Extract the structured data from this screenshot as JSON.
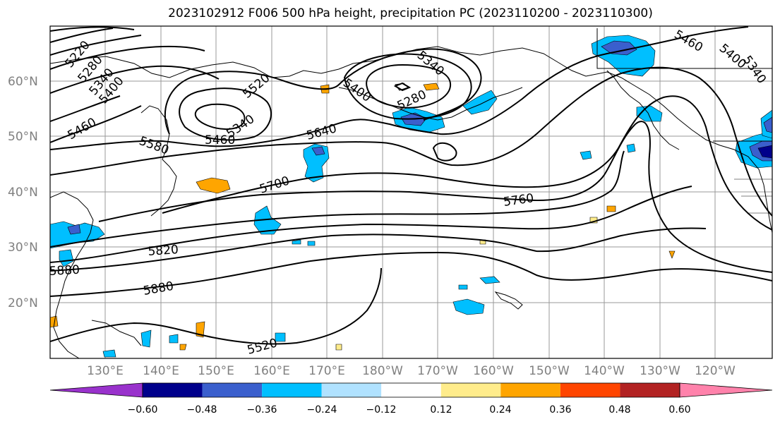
{
  "title": "2023102912 F006 500 hPa height, precipitation PC (2023110200 - 2023110300)",
  "lat_labels": [
    "60°N",
    "50°N",
    "40°N",
    "30°N",
    "20°N"
  ],
  "lon_labels": [
    "130°E",
    "140°E",
    "150°E",
    "160°E",
    "170°E",
    "180°W",
    "170°W",
    "160°W",
    "150°W",
    "140°W",
    "130°W",
    "120°W"
  ],
  "contour_labels": [
    "5220",
    "5280",
    "5340",
    "5400",
    "5460",
    "5580",
    "5460",
    "5340",
    "5520",
    "5400",
    "5340",
    "5280",
    "5640",
    "5700",
    "5760",
    "5820",
    "5880",
    "5880",
    "5520",
    "5460",
    "5400",
    "5340"
  ],
  "colorbar": {
    "colors": [
      "#9932cc",
      "#00008b",
      "#3a5fcd",
      "#00bfff",
      "#b0e2ff",
      "#ffffff",
      "#ffec8b",
      "#ffa500",
      "#ff4500",
      "#b22222",
      "#ff82ab"
    ],
    "tick_labels": [
      "−0.60",
      "−0.48",
      "−0.36",
      "−0.24",
      "−0.12",
      "0.12",
      "0.24",
      "0.36",
      "0.48",
      "0.60"
    ]
  }
}
